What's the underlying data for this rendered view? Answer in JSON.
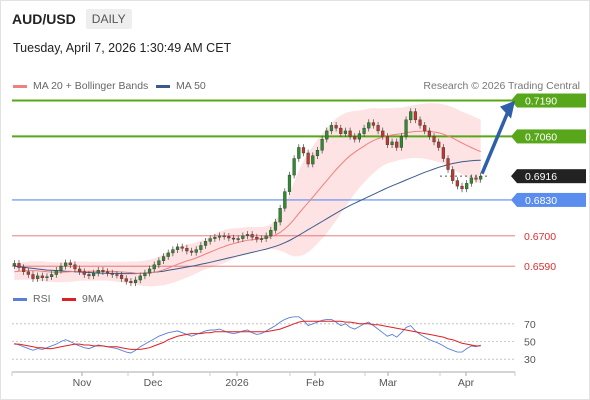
{
  "header": {
    "symbol": "AUD/USD",
    "timeframe": "DAILY",
    "timestamp": "Tuesday, April 7, 2026 1:30:49 AM CET",
    "credit": "Research © 2026 Trading Central"
  },
  "legend": {
    "ma20": {
      "label": "MA 20 + Bollinger Bands",
      "color": "#f08080"
    },
    "ma50": {
      "label": "MA 50",
      "color": "#3a5a8c"
    },
    "rsi": {
      "label": "RSI",
      "color": "#5b7fd6"
    },
    "rsi_ma": {
      "label": "9MA",
      "color": "#e02020"
    }
  },
  "colors": {
    "resistance": "#58a71a",
    "support": "#5b8def",
    "target": "#d93030",
    "current": "#222222",
    "arrow": "#2e5fa8",
    "candle_up": "#2e8b2e",
    "candle_down": "#c0392b",
    "band_fill": "#fde0e0"
  },
  "chart_data": {
    "type": "candlestick",
    "title": "AUD/USD DAILY",
    "x_ticks": [
      "Nov",
      "Dec",
      "2026",
      "Feb",
      "Mar",
      "Apr"
    ],
    "y_range": [
      0.654,
      0.721
    ],
    "levels": [
      {
        "value": "0.7190",
        "kind": "resistance"
      },
      {
        "value": "0.7060",
        "kind": "resistance"
      },
      {
        "value": "0.6916",
        "kind": "current"
      },
      {
        "value": "0.6830",
        "kind": "support"
      },
      {
        "value": "0.6700",
        "kind": "target"
      },
      {
        "value": "0.6590",
        "kind": "target"
      }
    ],
    "closes": [
      0.66,
      0.6585,
      0.657,
      0.656,
      0.6545,
      0.6555,
      0.6548,
      0.6552,
      0.656,
      0.6575,
      0.659,
      0.6602,
      0.6595,
      0.658,
      0.657,
      0.656,
      0.6555,
      0.6565,
      0.6575,
      0.657,
      0.6565,
      0.656,
      0.6558,
      0.6545,
      0.6535,
      0.653,
      0.654,
      0.6555,
      0.6565,
      0.658,
      0.6595,
      0.661,
      0.6625,
      0.6638,
      0.665,
      0.666,
      0.6655,
      0.6645,
      0.664,
      0.665,
      0.6665,
      0.668,
      0.669,
      0.6695,
      0.67,
      0.6698,
      0.6692,
      0.6688,
      0.669,
      0.67,
      0.6705,
      0.6695,
      0.6688,
      0.669,
      0.67,
      0.672,
      0.675,
      0.68,
      0.686,
      0.692,
      0.698,
      0.702,
      0.7,
      0.696,
      0.699,
      0.701,
      0.705,
      0.708,
      0.71,
      0.709,
      0.707,
      0.708,
      0.706,
      0.705,
      0.707,
      0.709,
      0.711,
      0.71,
      0.708,
      0.706,
      0.703,
      0.704,
      0.702,
      0.706,
      0.712,
      0.715,
      0.712,
      0.71,
      0.708,
      0.706,
      0.704,
      0.702,
      0.698,
      0.694,
      0.69,
      0.688,
      0.687,
      0.689,
      0.691,
      0.6905,
      0.6916
    ],
    "ma20": [
      0.657,
      0.6572,
      0.6573,
      0.6574,
      0.6574,
      0.6573,
      0.6572,
      0.657,
      0.6569,
      0.6568,
      0.6568,
      0.6569,
      0.657,
      0.6571,
      0.6572,
      0.6572,
      0.6572,
      0.6572,
      0.6572,
      0.6572,
      0.6572,
      0.6571,
      0.657,
      0.6569,
      0.6568,
      0.6567,
      0.6565,
      0.6564,
      0.6564,
      0.6565,
      0.6568,
      0.6572,
      0.6577,
      0.6583,
      0.659,
      0.6597,
      0.6603,
      0.6609,
      0.6614,
      0.662,
      0.6627,
      0.6634,
      0.6641,
      0.6648,
      0.6655,
      0.6661,
      0.6667,
      0.6672,
      0.6676,
      0.668,
      0.6684,
      0.6686,
      0.6688,
      0.669,
      0.6693,
      0.6697,
      0.6703,
      0.6712,
      0.6725,
      0.6741,
      0.676,
      0.6781,
      0.6801,
      0.682,
      0.684,
      0.686,
      0.688,
      0.69,
      0.692,
      0.694,
      0.6958,
      0.6975,
      0.699,
      0.7003,
      0.7014,
      0.7025,
      0.7036,
      0.7045,
      0.7052,
      0.7058,
      0.7062,
      0.7065,
      0.7068,
      0.707,
      0.7073,
      0.7076,
      0.7078,
      0.7079,
      0.7079,
      0.7078,
      0.7076,
      0.7073,
      0.7068,
      0.7062,
      0.7054,
      0.7045,
      0.7036,
      0.7028,
      0.702,
      0.7012,
      0.7005
    ],
    "ma50": [
      0.659,
      0.6588,
      0.6586,
      0.6584,
      0.6582,
      0.658,
      0.6578,
      0.6576,
      0.6575,
      0.6574,
      0.6573,
      0.6572,
      0.6571,
      0.657,
      0.6569,
      0.6568,
      0.6567,
      0.6566,
      0.6565,
      0.6565,
      0.6564,
      0.6564,
      0.6564,
      0.6563,
      0.6563,
      0.6563,
      0.6563,
      0.6564,
      0.6565,
      0.6566,
      0.6568,
      0.657,
      0.6572,
      0.6575,
      0.6578,
      0.6581,
      0.6584,
      0.6587,
      0.659,
      0.6593,
      0.6597,
      0.66,
      0.6604,
      0.6608,
      0.6612,
      0.6616,
      0.662,
      0.6624,
      0.6628,
      0.6632,
      0.6636,
      0.664,
      0.6644,
      0.6648,
      0.6652,
      0.6657,
      0.6662,
      0.6668,
      0.6675,
      0.6683,
      0.6692,
      0.6702,
      0.6712,
      0.6722,
      0.6732,
      0.6742,
      0.6752,
      0.6762,
      0.6772,
      0.6782,
      0.6792,
      0.6801,
      0.681,
      0.6818,
      0.6826,
      0.6834,
      0.6842,
      0.685,
      0.6858,
      0.6866,
      0.6874,
      0.6881,
      0.6888,
      0.6895,
      0.6902,
      0.6909,
      0.6916,
      0.6923,
      0.693,
      0.6936,
      0.6942,
      0.6948,
      0.6953,
      0.6958,
      0.6962,
      0.6965,
      0.6968,
      0.697,
      0.6972,
      0.6973,
      0.6974
    ],
    "bb_width": [
      0.003,
      0.0031,
      0.0032,
      0.0033,
      0.0034,
      0.0035,
      0.0036,
      0.0036,
      0.0036,
      0.0036,
      0.0036,
      0.0036,
      0.0036,
      0.0036,
      0.0035,
      0.0035,
      0.0034,
      0.0034,
      0.0034,
      0.0034,
      0.0034,
      0.0035,
      0.0036,
      0.0037,
      0.0038,
      0.004,
      0.0042,
      0.0044,
      0.0046,
      0.0048,
      0.005,
      0.0053,
      0.0056,
      0.0058,
      0.006,
      0.0061,
      0.0061,
      0.006,
      0.0058,
      0.0056,
      0.0055,
      0.0055,
      0.0056,
      0.0058,
      0.006,
      0.006,
      0.0058,
      0.0055,
      0.0052,
      0.005,
      0.0048,
      0.0046,
      0.0044,
      0.0042,
      0.0042,
      0.0045,
      0.0052,
      0.0065,
      0.0085,
      0.011,
      0.0135,
      0.0155,
      0.017,
      0.018,
      0.0185,
      0.0188,
      0.019,
      0.019,
      0.0188,
      0.0184,
      0.0178,
      0.017,
      0.016,
      0.015,
      0.014,
      0.0132,
      0.0125,
      0.0118,
      0.011,
      0.0104,
      0.01,
      0.0098,
      0.0096,
      0.0094,
      0.0094,
      0.0095,
      0.0096,
      0.0098,
      0.01,
      0.0102,
      0.0104,
      0.0106,
      0.0108,
      0.011,
      0.0112,
      0.0113,
      0.0114,
      0.0115,
      0.0116,
      0.0116,
      0.0116
    ],
    "rsi": {
      "y_ticks": [
        "70",
        "50",
        "30"
      ],
      "rsi": [
        48,
        46,
        44,
        42,
        40,
        42,
        41,
        43,
        45,
        47,
        50,
        52,
        50,
        47,
        45,
        43,
        42,
        44,
        46,
        45,
        44,
        43,
        42,
        40,
        38,
        37,
        40,
        44,
        47,
        50,
        53,
        56,
        58,
        60,
        61,
        62,
        60,
        58,
        56,
        58,
        60,
        62,
        63,
        63,
        64,
        62,
        60,
        59,
        60,
        62,
        63,
        60,
        58,
        59,
        62,
        65,
        68,
        72,
        75,
        77,
        78,
        78,
        74,
        68,
        70,
        72,
        74,
        75,
        75,
        72,
        68,
        70,
        66,
        64,
        67,
        70,
        72,
        68,
        64,
        60,
        56,
        58,
        55,
        60,
        66,
        68,
        62,
        58,
        55,
        52,
        50,
        48,
        45,
        42,
        40,
        38,
        38,
        42,
        45,
        44,
        46
      ],
      "ma": [
        47,
        47,
        46,
        45,
        44,
        43,
        43,
        42,
        42,
        43,
        44,
        45,
        46,
        47,
        47,
        46,
        46,
        45,
        45,
        45,
        44,
        44,
        44,
        43,
        42,
        41,
        41,
        41,
        42,
        43,
        45,
        47,
        49,
        52,
        54,
        56,
        57,
        58,
        59,
        59,
        59,
        60,
        60,
        61,
        61,
        61,
        61,
        61,
        61,
        61,
        61,
        61,
        61,
        61,
        61,
        62,
        63,
        64,
        66,
        68,
        70,
        72,
        73,
        73,
        73,
        73,
        73,
        73,
        73,
        73,
        73,
        72,
        72,
        71,
        70,
        70,
        70,
        69,
        69,
        68,
        67,
        66,
        65,
        64,
        63,
        62,
        61,
        60,
        59,
        58,
        57,
        56,
        55,
        53,
        52,
        50,
        48,
        47,
        46,
        45,
        45
      ]
    }
  }
}
